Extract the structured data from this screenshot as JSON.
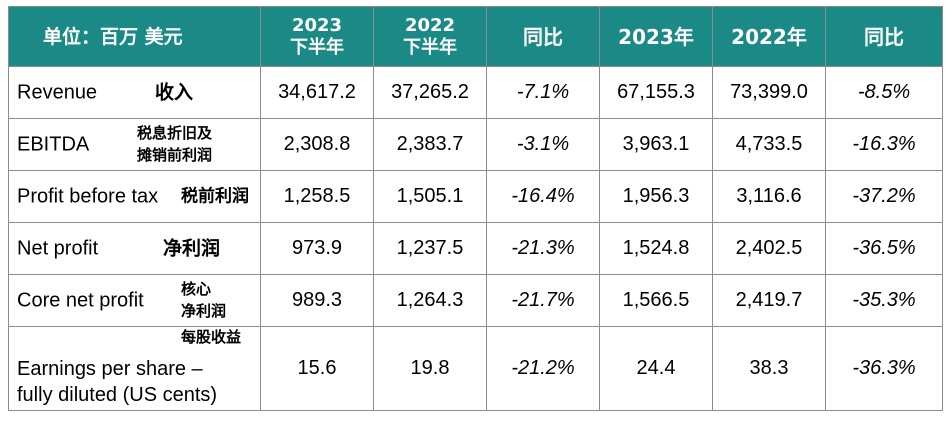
{
  "header": {
    "unit_label": "单位：百万 美元",
    "col_h2_2023": [
      "2023",
      "下半年"
    ],
    "col_h2_2022": [
      "2022",
      "下半年"
    ],
    "col_yoy_h2": "同比",
    "col_fy_2023": "2023年",
    "col_fy_2022": "2022年",
    "col_yoy_fy": "同比"
  },
  "rows": [
    {
      "en": "Revenue",
      "cn": [
        "收入"
      ],
      "values": [
        "34,617.2",
        "37,265.2",
        "-7.1%",
        "67,155.3",
        "73,399.0",
        "-8.5%"
      ]
    },
    {
      "en": "EBITDA",
      "cn": [
        "税息折旧及",
        "摊销前利润"
      ],
      "values": [
        "2,308.8",
        "2,383.7",
        "-3.1%",
        "3,963.1",
        "4,733.5",
        "-16.3%"
      ]
    },
    {
      "en": "Profit before tax",
      "cn": [
        "税前利润"
      ],
      "values": [
        "1,258.5",
        "1,505.1",
        "-16.4%",
        "1,956.3",
        "3,116.6",
        "-37.2%"
      ]
    },
    {
      "en": "Net profit",
      "cn": [
        "净利润"
      ],
      "values": [
        "973.9",
        "1,237.5",
        "-21.3%",
        "1,524.8",
        "2,402.5",
        "-36.5%"
      ]
    },
    {
      "en": "Core net profit",
      "cn": [
        "核心",
        "净利润"
      ],
      "values": [
        "989.3",
        "1,264.3",
        "-21.7%",
        "1,566.5",
        "2,419.7",
        "-35.3%"
      ]
    },
    {
      "en": [
        "Earnings per share –",
        "fully diluted (US cents)"
      ],
      "cn": [
        "每股收益"
      ],
      "values": [
        "15.6",
        "19.8",
        "-21.2%",
        "24.4",
        "38.3",
        "-36.3%"
      ]
    }
  ],
  "colors": {
    "header_bg": "#1b8a86",
    "header_text": "#ffffff",
    "border": "#8c8c8c"
  }
}
